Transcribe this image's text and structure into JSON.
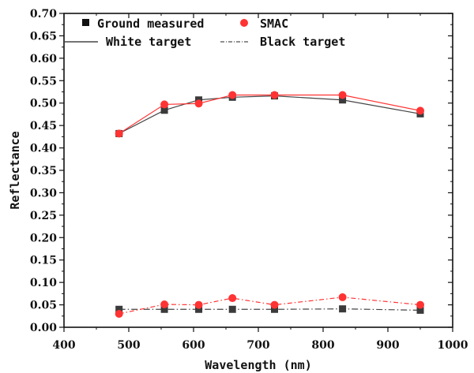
{
  "chart_data": {
    "type": "line",
    "title": "",
    "xlabel": "Wavelength (nm)",
    "ylabel": "Reflectance",
    "xlim": [
      400,
      1000
    ],
    "ylim": [
      0.0,
      0.7
    ],
    "xticks": [
      400,
      500,
      600,
      700,
      800,
      900,
      1000
    ],
    "xtick_labels": [
      "400",
      "500",
      "600",
      "700",
      "800",
      "900",
      "1000"
    ],
    "yticks": [
      0.0,
      0.05,
      0.1,
      0.15,
      0.2,
      0.25,
      0.3,
      0.35,
      0.4,
      0.45,
      0.5,
      0.55,
      0.6,
      0.65,
      0.7
    ],
    "ytick_labels": [
      "0.00",
      "0.05",
      "0.10",
      "0.15",
      "0.20",
      "0.25",
      "0.30",
      "0.35",
      "0.40",
      "0.45",
      "0.50",
      "0.55",
      "0.60",
      "0.65",
      "0.70"
    ],
    "grid": false,
    "legend_position": "top",
    "legend": [
      {
        "label": "Ground measured",
        "marker": "square",
        "color": "#333333"
      },
      {
        "label": "SMAC",
        "marker": "circle",
        "color": "#ff3333"
      },
      {
        "label": "White target",
        "line": "solid",
        "color": "#333333"
      },
      {
        "label": "Black target",
        "line": "dash-dot",
        "color": "#333333"
      }
    ],
    "x": [
      485,
      555,
      608,
      660,
      725,
      830,
      950
    ],
    "series": [
      {
        "name": "White target - Ground measured",
        "target": "white",
        "source": "ground",
        "marker": "square",
        "line": "solid",
        "color": "#444444",
        "values": [
          0.432,
          0.484,
          0.507,
          0.513,
          0.516,
          0.507,
          0.476
        ]
      },
      {
        "name": "White target - SMAC",
        "target": "white",
        "source": "smac",
        "marker": "circle",
        "line": "solid",
        "color": "#ff3333",
        "values": [
          0.432,
          0.497,
          0.499,
          0.518,
          0.518,
          0.518,
          0.483
        ]
      },
      {
        "name": "Black target - Ground measured",
        "target": "black",
        "source": "ground",
        "marker": "square",
        "line": "dash-dot",
        "color": "#444444",
        "values": [
          0.04,
          0.04,
          0.04,
          0.04,
          0.04,
          0.041,
          0.038
        ]
      },
      {
        "name": "Black target - SMAC",
        "target": "black",
        "source": "smac",
        "marker": "circle",
        "line": "dash-dot",
        "color": "#ff3333",
        "values": [
          0.03,
          0.051,
          0.05,
          0.065,
          0.05,
          0.067,
          0.05
        ]
      }
    ]
  }
}
